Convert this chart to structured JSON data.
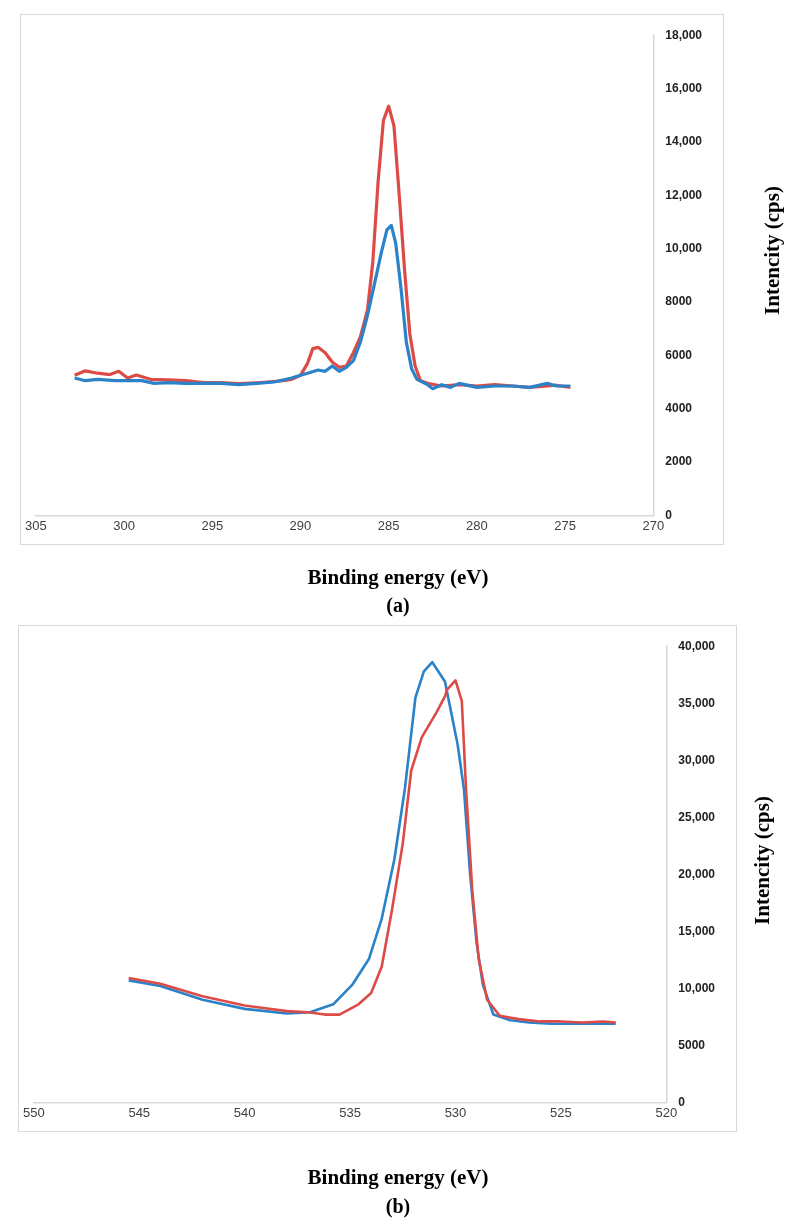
{
  "chart_data": [
    {
      "type": "line",
      "xlabel": "Binding energy (eV)",
      "ylabel": "Intencity (cps)",
      "annotations": [
        "(a)"
      ],
      "marker": "none",
      "grid": false,
      "xlim": [
        305,
        270
      ],
      "xticks": [
        305,
        300,
        295,
        290,
        285,
        280,
        275,
        270
      ],
      "ylim": [
        0,
        18000
      ],
      "yticks": [
        0,
        2000,
        4000,
        6000,
        8000,
        {
          "value": 10000,
          "label": "10,000"
        },
        {
          "value": 12000,
          "label": "12,000"
        },
        {
          "value": 14000,
          "label": "14,000"
        },
        {
          "value": 16000,
          "label": "16,000"
        },
        {
          "value": 18000,
          "label": "18,000"
        }
      ],
      "series": [
        {
          "color": "#2a82c8",
          "x": [
            302.8,
            302.2,
            301.5,
            300.5,
            299.8,
            299,
            298.3,
            297.5,
            296.5,
            295.5,
            294.5,
            293.5,
            292.5,
            291.5,
            290.5,
            290,
            289.5,
            289,
            288.6,
            288.2,
            287.8,
            287.4,
            287,
            286.6,
            286.2,
            285.8,
            285.4,
            285.1,
            284.85,
            284.6,
            284.3,
            284,
            283.7,
            283.4,
            282.8,
            282.5,
            282,
            281.5,
            281,
            280,
            279,
            278,
            277,
            276,
            275.5,
            274.7
          ],
          "values": [
            5150,
            5050,
            5100,
            5050,
            5050,
            5050,
            4950,
            4980,
            4950,
            4950,
            4950,
            4900,
            4950,
            5000,
            5150,
            5250,
            5350,
            5450,
            5400,
            5600,
            5400,
            5550,
            5800,
            6500,
            7500,
            8700,
            9900,
            10700,
            10870,
            10200,
            8500,
            6500,
            5500,
            5100,
            4900,
            4750,
            4900,
            4800,
            4950,
            4800,
            4850,
            4850,
            4800,
            4950,
            4850,
            4850
          ]
        },
        {
          "color": "#dd4b47",
          "x": [
            302.8,
            302.2,
            301.5,
            300.8,
            300.3,
            299.8,
            299.3,
            298.5,
            297.5,
            296.5,
            295.5,
            294.5,
            293.5,
            292.5,
            291.5,
            291,
            290.5,
            290,
            289.6,
            289.3,
            289,
            288.6,
            288.2,
            287.8,
            287.4,
            287,
            286.6,
            286.2,
            285.9,
            285.6,
            285.3,
            285,
            284.7,
            284.4,
            284.1,
            283.8,
            283.5,
            283.2,
            282.8,
            282,
            281,
            280,
            279,
            278,
            277,
            276,
            275.5,
            274.7
          ],
          "values": [
            5250,
            5420,
            5330,
            5280,
            5400,
            5150,
            5260,
            5100,
            5080,
            5050,
            4980,
            4980,
            4940,
            4970,
            5020,
            5050,
            5100,
            5250,
            5700,
            6250,
            6300,
            6100,
            5750,
            5550,
            5600,
            6100,
            6700,
            7700,
            9500,
            12500,
            14800,
            15340,
            14600,
            12000,
            9200,
            6800,
            5600,
            5050,
            4950,
            4850,
            4900,
            4850,
            4900,
            4850,
            4800,
            4850,
            4880,
            4800
          ]
        }
      ]
    },
    {
      "type": "line",
      "xlabel": "Binding energy (eV)",
      "ylabel": "Intencity (cps)",
      "annotations": [
        "(b)"
      ],
      "marker": "none",
      "grid": false,
      "xlim": [
        550,
        520
      ],
      "xticks": [
        550,
        545,
        540,
        535,
        530,
        525,
        520
      ],
      "ylim": [
        0,
        40000
      ],
      "yticks": [
        0,
        5000,
        {
          "value": 10000,
          "label": "10,000"
        },
        {
          "value": 15000,
          "label": "15,000"
        },
        {
          "value": 20000,
          "label": "20,000"
        },
        {
          "value": 25000,
          "label": "25,000"
        },
        {
          "value": 30000,
          "label": "30,000"
        },
        {
          "value": 35000,
          "label": "35,000"
        },
        {
          "value": 40000,
          "label": "40,000"
        }
      ],
      "series": [
        {
          "color": "#dd4b47",
          "x": [
            545.5,
            544,
            542,
            540,
            538,
            537,
            536.2,
            535.5,
            534.6,
            534,
            533.5,
            533,
            532.5,
            532.1,
            531.6,
            530.9,
            530.5,
            530.4,
            530,
            529.7,
            529.5,
            529.2,
            528.9,
            528.5,
            527.9,
            527,
            526,
            525,
            524,
            523,
            522.4
          ],
          "values": [
            10900,
            10400,
            9300,
            8500,
            8000,
            7900,
            7700,
            7700,
            8600,
            9600,
            11900,
            17000,
            22700,
            29100,
            32000,
            34200,
            35600,
            36200,
            37000,
            35200,
            27500,
            18500,
            12600,
            9000,
            7600,
            7300,
            7100,
            7100,
            7000,
            7100,
            7000
          ]
        },
        {
          "color": "#2a82c8",
          "x": [
            545.5,
            544,
            542,
            540,
            538,
            536.9,
            535.8,
            534.9,
            534.1,
            533.5,
            532.9,
            532.4,
            531.9,
            531.5,
            531.1,
            530.5,
            529.9,
            529.6,
            529.3,
            529,
            528.7,
            528.2,
            527.4,
            526.5,
            525.5,
            524.5,
            523.5,
            522.4
          ],
          "values": [
            10700,
            10200,
            9000,
            8200,
            7800,
            7900,
            8600,
            10300,
            12600,
            16100,
            21300,
            27500,
            35500,
            37800,
            38600,
            36900,
            31400,
            27500,
            19900,
            14000,
            10300,
            7700,
            7200,
            7000,
            6900,
            6900,
            6900,
            6900
          ]
        }
      ]
    }
  ]
}
